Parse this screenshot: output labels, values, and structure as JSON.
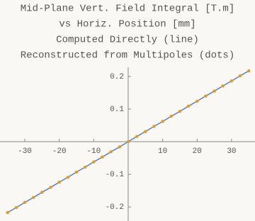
{
  "chart_data": {
    "type": "line",
    "title_lines": [
      "Mid-Plane Vert. Field Integral [T.m]",
      "vs Horiz. Position [mm]",
      "Computed Directly (line)",
      "Reconstructed from Multipoles (dots)"
    ],
    "x": [
      -35,
      -32.5,
      -30,
      -27.5,
      -25,
      -22.5,
      -20,
      -17.5,
      -15,
      -12.5,
      -10,
      -7.5,
      -5,
      -2.5,
      0,
      2.5,
      5,
      7.5,
      10,
      12.5,
      15,
      17.5,
      20,
      22.5,
      25,
      27.5,
      30,
      32.5,
      35
    ],
    "series": [
      {
        "style": "line",
        "color": "#5e81b5",
        "values": [
          -0.217,
          -0.202,
          -0.186,
          -0.171,
          -0.155,
          -0.14,
          -0.124,
          -0.109,
          -0.093,
          -0.078,
          -0.062,
          -0.047,
          -0.031,
          -0.016,
          0,
          0.016,
          0.031,
          0.047,
          0.062,
          0.078,
          0.093,
          0.109,
          0.124,
          0.14,
          0.155,
          0.171,
          0.186,
          0.202,
          0.217
        ]
      },
      {
        "style": "dots",
        "color": "#e19c24",
        "values": [
          -0.217,
          -0.202,
          -0.186,
          -0.171,
          -0.155,
          -0.14,
          -0.124,
          -0.109,
          -0.093,
          -0.078,
          -0.062,
          -0.047,
          -0.031,
          -0.016,
          0,
          0.016,
          0.031,
          0.047,
          0.062,
          0.078,
          0.093,
          0.109,
          0.124,
          0.14,
          0.155,
          0.171,
          0.186,
          0.202,
          0.217
        ]
      }
    ],
    "xlim": [
      -37.2,
      36.8
    ],
    "ylim": [
      -0.243,
      0.228
    ],
    "xticks": [
      -30,
      -20,
      -10,
      10,
      20,
      30
    ],
    "yticks": [
      -0.2,
      -0.1,
      0.1,
      0.2
    ]
  }
}
